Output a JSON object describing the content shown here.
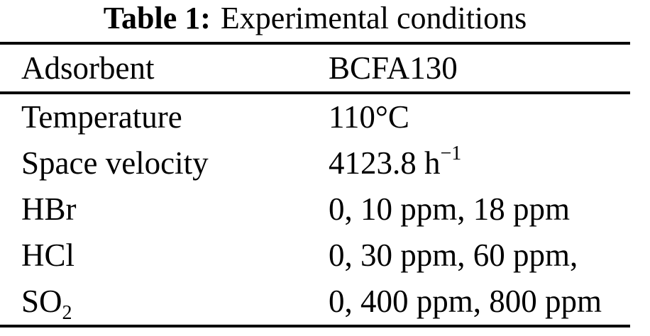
{
  "colors": {
    "background": "#ffffff",
    "text": "#000000",
    "rule": "#000000"
  },
  "caption": {
    "label": "Table 1:",
    "text": "Experimental conditions"
  },
  "table": {
    "rows": [
      {
        "label": "Adsorbent",
        "value": "BCFA130"
      },
      {
        "label": "Temperature",
        "value": "110°C"
      },
      {
        "label": "Space velocity",
        "value": "4123.8 h",
        "value_sup": "−1"
      },
      {
        "label": "HBr",
        "value": "0, 10 ppm, 18 ppm"
      },
      {
        "label": "HCl",
        "value": "0, 30 ppm, 60 ppm,"
      },
      {
        "label": "SO",
        "label_sub": "2",
        "value": "0, 400 ppm, 800 ppm"
      }
    ]
  }
}
